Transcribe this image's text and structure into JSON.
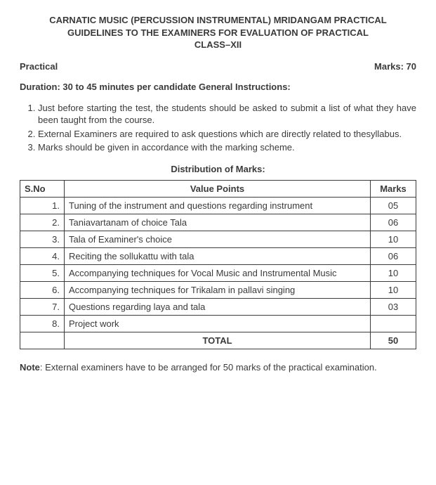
{
  "title_lines": [
    "CARNATIC MUSIC (PERCUSSION INSTRUMENTAL) MRIDANGAM PRACTICAL",
    "GUIDELINES TO THE EXAMINERS FOR EVALUATION OF PRACTICAL",
    "CLASS–XII"
  ],
  "meta": {
    "practical_label": "Practical",
    "marks_label": "Marks: 70"
  },
  "duration_line": "Duration: 30 to 45 minutes per candidate General Instructions:",
  "instructions": [
    "Just before starting the test, the students should be asked to submit a list of what they have been taught from the course.",
    "External Examiners are required to ask questions which are directly related to thesyllabus.",
    "Marks should be given in accordance with the marking scheme."
  ],
  "distribution_heading": "Distribution of Marks:",
  "table": {
    "headers": {
      "sno": "S.No",
      "value_points": "Value Points",
      "marks": "Marks"
    },
    "rows": [
      {
        "sno": "1.",
        "vp": "Tuning of the instrument and questions regarding instrument",
        "marks": "05"
      },
      {
        "sno": "2.",
        "vp": "Taniavartanam of choice Tala",
        "marks": "06"
      },
      {
        "sno": "3.",
        "vp": "Tala of Examiner's choice",
        "marks": "10"
      },
      {
        "sno": "4.",
        "vp": "Reciting the sollukattu with tala",
        "marks": "06"
      },
      {
        "sno": "5.",
        "vp": "Accompanying techniques for Vocal Music and Instrumental Music",
        "marks": "10"
      },
      {
        "sno": "6.",
        "vp": "Accompanying techniques for Trikalam in pallavi singing",
        "marks": "10"
      },
      {
        "sno": "7.",
        "vp": "Questions regarding laya and tala",
        "marks": "03"
      },
      {
        "sno": "8.",
        "vp": "Project work",
        "marks": ""
      }
    ],
    "total": {
      "label": "TOTAL",
      "marks": "50"
    }
  },
  "note": {
    "label": "Note",
    "text": ": External examiners have to be arranged for 50 marks of the practical examination."
  }
}
